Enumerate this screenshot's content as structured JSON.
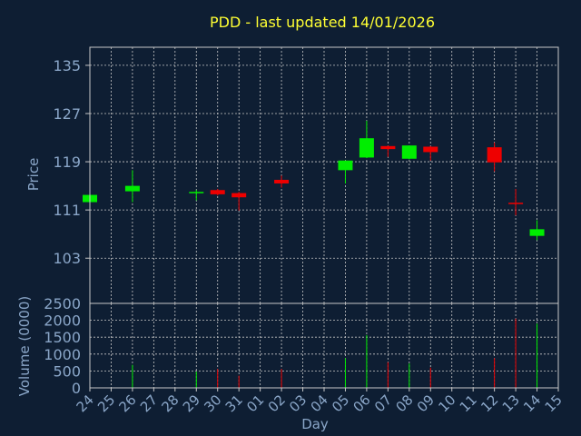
{
  "chart_data": {
    "type": "candlestick",
    "title": "PDD - last updated 14/01/2026",
    "xlabel": "Day",
    "price_panel": {
      "ylabel": "Price",
      "yticks": [
        103,
        111,
        119,
        127,
        135
      ],
      "ylim": [
        95.5,
        138
      ],
      "grid": true
    },
    "volume_panel": {
      "ylabel": "Volume (0000)",
      "yticks": [
        0,
        500,
        1000,
        1500,
        2000,
        2500
      ],
      "ylim": [
        0,
        2500
      ],
      "grid": true
    },
    "x_labels": [
      "24",
      "25",
      "26",
      "27",
      "28",
      "29",
      "30",
      "31",
      "01",
      "02",
      "03",
      "04",
      "05",
      "06",
      "07",
      "08",
      "09",
      "10",
      "11",
      "12",
      "13",
      "14",
      "15"
    ],
    "candles": [
      {
        "day": "24",
        "open": 112.3,
        "close": 113.5,
        "high": 113.5,
        "low": 112.3,
        "volume": 0
      },
      {
        "day": "26",
        "open": 114.1,
        "close": 115.0,
        "high": 117.6,
        "low": 112.3,
        "volume": 680
      },
      {
        "day": "29",
        "open": 113.8,
        "close": 114.0,
        "high": 114.3,
        "low": 112.6,
        "volume": 480
      },
      {
        "day": "30",
        "open": 114.3,
        "close": 113.6,
        "high": 114.5,
        "low": 113.4,
        "volume": 560
      },
      {
        "day": "31",
        "open": 113.8,
        "close": 113.1,
        "high": 114.0,
        "low": 110.9,
        "volume": 360
      },
      {
        "day": "02",
        "open": 116.0,
        "close": 115.4,
        "high": 116.7,
        "low": 114.7,
        "volume": 560
      },
      {
        "day": "05",
        "open": 117.6,
        "close": 119.2,
        "high": 119.2,
        "low": 115.4,
        "volume": 880
      },
      {
        "day": "06",
        "open": 119.7,
        "close": 122.9,
        "high": 125.8,
        "low": 119.6,
        "volume": 1560
      },
      {
        "day": "07",
        "open": 121.6,
        "close": 121.1,
        "high": 121.7,
        "low": 119.8,
        "volume": 760
      },
      {
        "day": "08",
        "open": 119.5,
        "close": 121.7,
        "high": 121.7,
        "low": 119.4,
        "volume": 720
      },
      {
        "day": "09",
        "open": 121.5,
        "close": 120.6,
        "high": 121.6,
        "low": 119.2,
        "volume": 600
      },
      {
        "day": "12",
        "open": 121.4,
        "close": 118.9,
        "high": 122.2,
        "low": 117.4,
        "volume": 880
      },
      {
        "day": "13",
        "open": 112.2,
        "close": 112.2,
        "high": 114.5,
        "low": 110.1,
        "volume": 2050
      },
      {
        "day": "14",
        "open": 106.7,
        "close": 107.8,
        "high": 109.3,
        "low": 106.0,
        "volume": 1900
      }
    ],
    "colors": {
      "background": "#0e1e33",
      "up": "#00ee00",
      "down": "#ee0000",
      "title": "#ffff33",
      "axis_text": "#8aa6c8",
      "frame": "#c8c8c8",
      "grid": "#c8c8c8",
      "neutral": "#ee0000"
    }
  }
}
